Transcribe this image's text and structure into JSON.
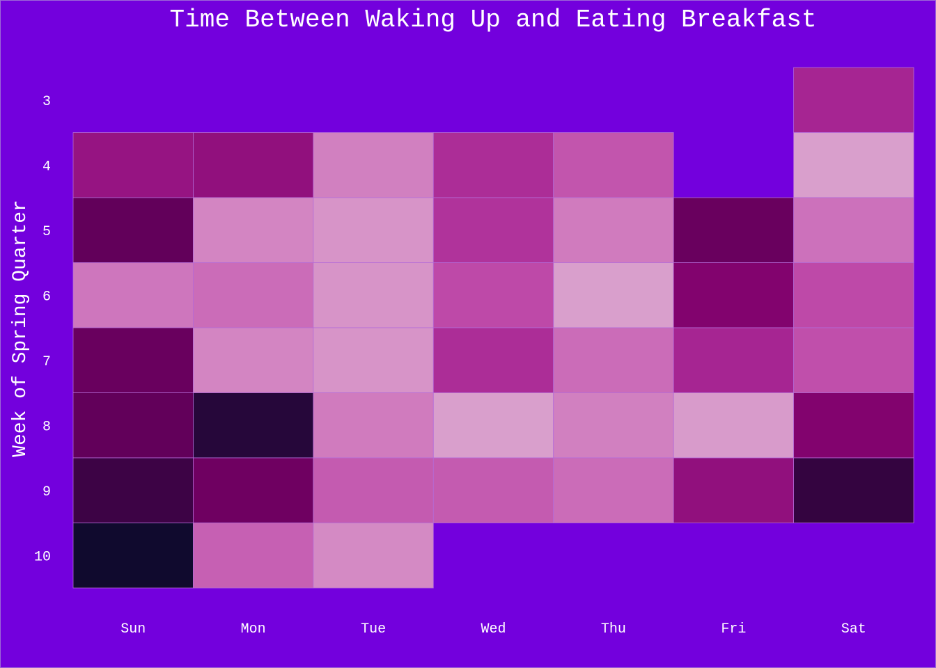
{
  "chart_data": {
    "type": "heatmap",
    "title": "Time Between Waking Up and Eating Breakfast",
    "xlabel": "",
    "ylabel": "Week of Spring Quarter",
    "categories": [
      "Sun",
      "Mon",
      "Tue",
      "Wed",
      "Thu",
      "Fri",
      "Sat"
    ],
    "y_categories": [
      "3",
      "4",
      "5",
      "6",
      "7",
      "8",
      "9",
      "10"
    ],
    "values": [
      [
        null,
        null,
        null,
        null,
        null,
        null,
        0.45
      ],
      [
        0.38,
        0.36,
        0.78,
        0.48,
        0.62,
        null,
        0.92
      ],
      [
        0.2,
        0.8,
        0.86,
        0.5,
        0.76,
        0.22,
        0.72
      ],
      [
        0.74,
        0.7,
        0.86,
        0.58,
        0.92,
        0.3,
        0.58
      ],
      [
        0.22,
        0.8,
        0.86,
        0.48,
        0.7,
        0.45,
        0.6
      ],
      [
        0.2,
        0.05,
        0.76,
        0.92,
        0.78,
        0.9,
        0.3
      ],
      [
        0.1,
        0.24,
        0.64,
        0.64,
        0.7,
        0.36,
        0.08
      ],
      [
        0.0,
        0.66,
        0.82,
        null,
        null,
        null,
        null
      ]
    ],
    "value_range": [
      0,
      1
    ],
    "colorscale": [
      "#100a2e",
      "#50004f",
      "#7e006a",
      "#a21f8e",
      "#bd47a7",
      "#cc70ba",
      "#d793c8",
      "#dbafd1"
    ],
    "grid": false,
    "legend": "none"
  },
  "colors": {
    "background": "#7300dd",
    "text": "#ffffff",
    "cell_border": "#b46bd8"
  }
}
